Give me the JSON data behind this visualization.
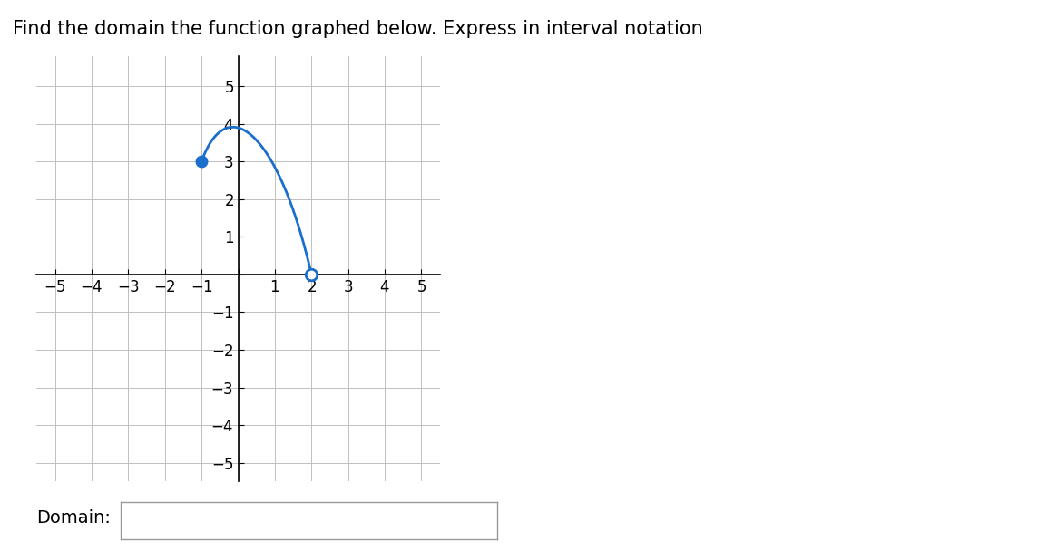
{
  "title": "Find the domain the function graphed below. Express in interval notation",
  "title_fontsize": 15,
  "background_color": "#ffffff",
  "grid_color": "#c0c0c0",
  "axis_color": "#000000",
  "curve_color": "#1a6ecc",
  "curve_linewidth": 2.0,
  "xlim": [
    -5.5,
    5.5
  ],
  "ylim": [
    -5.5,
    5.8
  ],
  "tick_fontsize": 12,
  "closed_point": [
    -1,
    3
  ],
  "open_point": [
    2,
    0
  ],
  "closed_point_color": "#1a6ecc",
  "open_point_color": "#ffffff",
  "open_point_edge_color": "#1a6ecc",
  "point_size": 9,
  "domain_label": "Domain:",
  "domain_label_fontsize": 14,
  "bezier_P0": [
    -1,
    3
  ],
  "bezier_P1": [
    -0.3,
    4.9
  ],
  "bezier_P2": [
    1.1,
    3.8
  ],
  "bezier_P3": [
    2,
    0
  ]
}
